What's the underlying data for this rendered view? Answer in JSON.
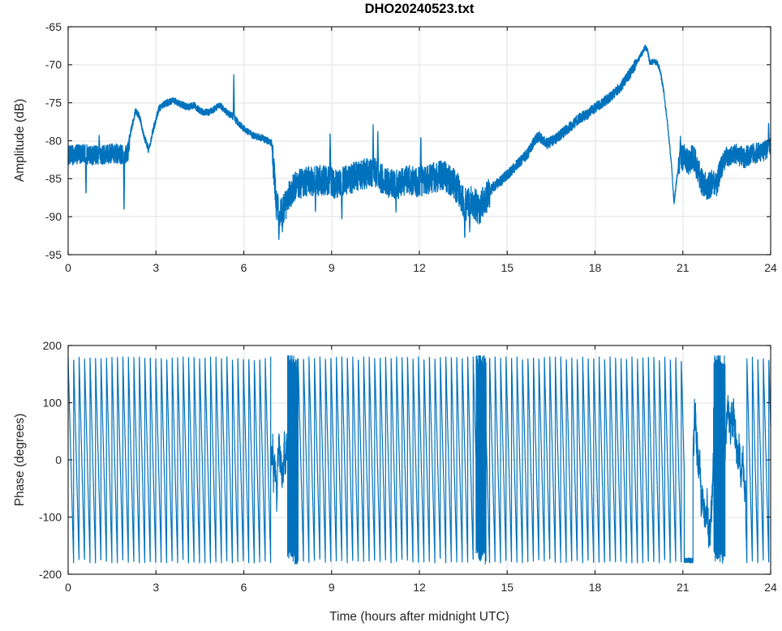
{
  "figure": {
    "title": "DHO20240523.txt",
    "background": "#ffffff"
  },
  "colors": {
    "line": "#0072BD",
    "grid": "#e2e2e2",
    "axis": "#262626",
    "tick_label": "#262626",
    "title": "#000000",
    "background": "#ffffff"
  },
  "chart_data": [
    {
      "type": "line",
      "title": "DHO20240523.txt",
      "xlabel": "",
      "ylabel": "Amplitude (dB)",
      "xlim": [
        0,
        24
      ],
      "ylim": [
        -95,
        -65
      ],
      "xticks": [
        0,
        3,
        6,
        9,
        12,
        15,
        18,
        21,
        24
      ],
      "yticks": [
        -95,
        -90,
        -85,
        -80,
        -75,
        -70,
        -65
      ],
      "grid": true,
      "legend": null,
      "line_color": "#0072BD",
      "x_unit": "hours after midnight UTC",
      "envelope_keypoints": [
        [
          0,
          -82.0
        ],
        [
          0.5,
          -81.7
        ],
        [
          1.0,
          -82.0
        ],
        [
          1.5,
          -81.6
        ],
        [
          1.9,
          -81.9
        ],
        [
          2.05,
          -81.3
        ],
        [
          2.15,
          -78.6
        ],
        [
          2.3,
          -76.0
        ],
        [
          2.45,
          -76.9
        ],
        [
          2.6,
          -79.5
        ],
        [
          2.75,
          -81.2
        ],
        [
          2.9,
          -78.6
        ],
        [
          3.1,
          -75.8
        ],
        [
          3.3,
          -75.1
        ],
        [
          3.6,
          -74.7
        ],
        [
          3.9,
          -75.3
        ],
        [
          4.1,
          -75.6
        ],
        [
          4.3,
          -75.3
        ],
        [
          4.55,
          -76.2
        ],
        [
          4.8,
          -76.3
        ],
        [
          5.0,
          -75.8
        ],
        [
          5.2,
          -75.4
        ],
        [
          5.45,
          -76.4
        ],
        [
          5.6,
          -76.7
        ],
        [
          5.75,
          -77.4
        ],
        [
          6.0,
          -78.4
        ],
        [
          6.3,
          -79.3
        ],
        [
          6.6,
          -79.6
        ],
        [
          6.95,
          -80.3
        ],
        [
          7.03,
          -84.0
        ],
        [
          7.12,
          -88.6
        ],
        [
          7.25,
          -89.6
        ],
        [
          7.4,
          -88.8
        ],
        [
          7.55,
          -87.3
        ],
        [
          7.75,
          -85.9
        ],
        [
          8.2,
          -85.4
        ],
        [
          8.7,
          -85.2
        ],
        [
          9.2,
          -85.7
        ],
        [
          9.7,
          -84.9
        ],
        [
          10.1,
          -84.4
        ],
        [
          10.45,
          -84.1
        ],
        [
          10.8,
          -85.3
        ],
        [
          11.2,
          -85.8
        ],
        [
          11.6,
          -85.1
        ],
        [
          12.0,
          -85.5
        ],
        [
          12.4,
          -84.9
        ],
        [
          12.8,
          -84.6
        ],
        [
          13.1,
          -85.3
        ],
        [
          13.35,
          -86.6
        ],
        [
          13.55,
          -88.4
        ],
        [
          13.8,
          -88.2
        ],
        [
          14.05,
          -88.8
        ],
        [
          14.25,
          -87.6
        ],
        [
          14.5,
          -86.2
        ],
        [
          14.8,
          -85.2
        ],
        [
          15.1,
          -84.1
        ],
        [
          15.4,
          -82.9
        ],
        [
          15.7,
          -81.7
        ],
        [
          15.95,
          -79.9
        ],
        [
          16.1,
          -79.5
        ],
        [
          16.35,
          -80.4
        ],
        [
          16.6,
          -79.9
        ],
        [
          16.9,
          -79.0
        ],
        [
          17.2,
          -78.0
        ],
        [
          17.5,
          -76.9
        ],
        [
          17.75,
          -76.5
        ],
        [
          18.0,
          -75.7
        ],
        [
          18.3,
          -74.9
        ],
        [
          18.6,
          -74.0
        ],
        [
          18.9,
          -72.8
        ],
        [
          19.2,
          -71.1
        ],
        [
          19.5,
          -69.2
        ],
        [
          19.72,
          -67.7
        ],
        [
          19.8,
          -68.2
        ],
        [
          19.87,
          -69.7
        ],
        [
          20.0,
          -69.6
        ],
        [
          20.12,
          -69.7
        ],
        [
          20.22,
          -70.7
        ],
        [
          20.35,
          -73.6
        ],
        [
          20.5,
          -78.6
        ],
        [
          20.62,
          -83.5
        ],
        [
          20.7,
          -88.2
        ],
        [
          20.78,
          -85.4
        ],
        [
          20.88,
          -82.6
        ],
        [
          21.05,
          -82.2
        ],
        [
          21.2,
          -83.0
        ],
        [
          21.35,
          -82.1
        ],
        [
          21.5,
          -83.6
        ],
        [
          21.65,
          -85.4
        ],
        [
          21.85,
          -86.1
        ],
        [
          22.0,
          -85.6
        ],
        [
          22.15,
          -85.7
        ],
        [
          22.3,
          -83.6
        ],
        [
          22.5,
          -82.1
        ],
        [
          22.8,
          -81.8
        ],
        [
          23.1,
          -82.2
        ],
        [
          23.4,
          -81.7
        ],
        [
          23.7,
          -81.5
        ],
        [
          23.95,
          -81.1
        ],
        [
          24,
          -80.8
        ]
      ],
      "noise_segments": [
        [
          0,
          2.1,
          1.3
        ],
        [
          2.1,
          6.98,
          0.45
        ],
        [
          6.98,
          7.6,
          2.0
        ],
        [
          7.6,
          13.3,
          2.0
        ],
        [
          13.3,
          14.4,
          2.2
        ],
        [
          14.4,
          19.4,
          0.7
        ],
        [
          19.4,
          20.85,
          0.35
        ],
        [
          20.85,
          22.3,
          1.8
        ],
        [
          22.3,
          24,
          1.4
        ]
      ],
      "spikes": [
        [
          0.61,
          -87.3
        ],
        [
          1.06,
          -79.3
        ],
        [
          1.91,
          -89.7
        ],
        [
          5.66,
          -71.3
        ],
        [
          7.2,
          -93.0
        ],
        [
          7.32,
          -92.0
        ],
        [
          8.45,
          -89.6
        ],
        [
          8.95,
          -78.6
        ],
        [
          9.35,
          -90.6
        ],
        [
          10.42,
          -77.9
        ],
        [
          10.58,
          -78.8
        ],
        [
          11.2,
          -89.4
        ],
        [
          12.05,
          -79.0
        ],
        [
          13.55,
          -93.2
        ],
        [
          13.72,
          -92.0
        ],
        [
          20.92,
          -79.4
        ],
        [
          23.93,
          -77.5
        ]
      ]
    },
    {
      "type": "line",
      "title": "",
      "xlabel": "Time (hours after midnight UTC)",
      "ylabel": "Phase (degrees)",
      "xlim": [
        0,
        24
      ],
      "ylim": [
        -200,
        200
      ],
      "xticks": [
        0,
        3,
        6,
        9,
        12,
        15,
        18,
        21,
        24
      ],
      "yticks": [
        -200,
        -100,
        0,
        100,
        200
      ],
      "grid": true,
      "legend": null,
      "line_color": "#0072BD",
      "phase_wrap_limit_degrees": 180,
      "wrap_period_hours": 0.187,
      "zones": [
        {
          "t0": 0,
          "t1": 6.92,
          "mode": "wrap"
        },
        {
          "t0": 6.92,
          "t1": 7.5,
          "mode": "meander",
          "lo": -130,
          "hi": 45
        },
        {
          "t0": 7.5,
          "t1": 7.85,
          "mode": "dense"
        },
        {
          "t0": 7.85,
          "t1": 13.93,
          "mode": "wrap"
        },
        {
          "t0": 13.93,
          "t1": 14.28,
          "mode": "dense"
        },
        {
          "t0": 14.28,
          "t1": 21.05,
          "mode": "wrap"
        },
        {
          "t0": 21.05,
          "t1": 21.35,
          "mode": "floor"
        },
        {
          "t0": 21.35,
          "t1": 22.05,
          "mode": "meander",
          "lo": -170,
          "hi": 170
        },
        {
          "t0": 22.05,
          "t1": 22.45,
          "mode": "dense"
        },
        {
          "t0": 22.45,
          "t1": 23.15,
          "mode": "meander",
          "lo": -170,
          "hi": 170
        },
        {
          "t0": 23.15,
          "t1": 24,
          "mode": "wrap"
        }
      ]
    }
  ]
}
